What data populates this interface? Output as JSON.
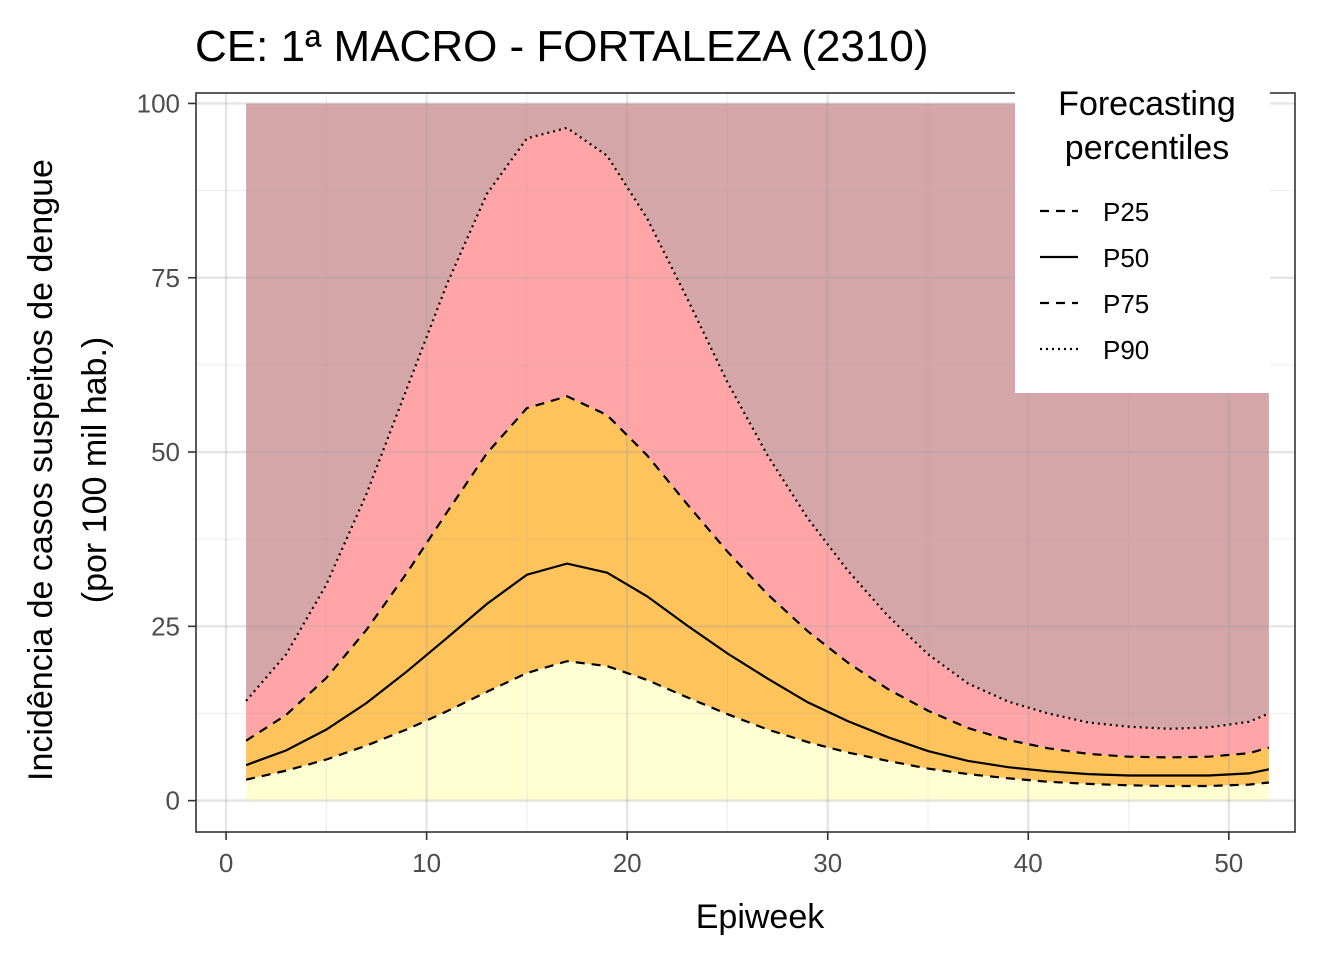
{
  "chart_data": {
    "type": "area",
    "title": "CE: 1ª MACRO - FORTALEZA (2310)",
    "xlabel": "Epiweek",
    "ylabel_line1": "Incidência de casos suspeitos de dengue",
    "ylabel_line2": "(por 100 mil hab.)",
    "xlim": [
      -1.5,
      53.3
    ],
    "ylim": [
      -4.5,
      101.5
    ],
    "x_ticks": [
      0,
      10,
      20,
      30,
      40,
      50
    ],
    "x_tick_labels": [
      "0",
      "10",
      "20",
      "30",
      "40",
      "50"
    ],
    "y_ticks": [
      0,
      25,
      50,
      75,
      100
    ],
    "y_tick_labels": [
      "0",
      "25",
      "50",
      "75",
      "100"
    ],
    "grid": true,
    "legend": {
      "title_line1": "Forecasting",
      "title_line2": "percentiles",
      "placement": "top-right",
      "entries": [
        {
          "label": "P25",
          "linetype": "dashed"
        },
        {
          "label": "P50",
          "linetype": "solid"
        },
        {
          "label": "P75",
          "linetype": "dashed"
        },
        {
          "label": "P90",
          "linetype": "dotted"
        }
      ]
    },
    "band_colors": {
      "below_p25": "#ffffd4",
      "p25_p75": "#fec35a",
      "p75_p90": "#ffa5a8",
      "above_p90": "#d5a6a8"
    },
    "band_top": 100,
    "x": [
      1,
      3,
      5,
      7,
      9,
      11,
      13,
      15,
      17,
      19,
      21,
      23,
      25,
      27,
      29,
      31,
      33,
      35,
      37,
      39,
      41,
      43,
      45,
      47,
      49,
      51,
      52
    ],
    "series": [
      {
        "name": "P25",
        "values": [
          3.0,
          4.3,
          5.9,
          7.9,
          10.2,
          12.8,
          15.6,
          18.3,
          20.0,
          19.3,
          17.3,
          14.8,
          12.4,
          10.2,
          8.4,
          6.9,
          5.7,
          4.6,
          3.8,
          3.2,
          2.7,
          2.4,
          2.2,
          2.1,
          2.1,
          2.3,
          2.6
        ]
      },
      {
        "name": "P50",
        "values": [
          5.1,
          7.2,
          10.2,
          14.0,
          18.5,
          23.3,
          28.2,
          32.4,
          34.0,
          32.7,
          29.3,
          25.1,
          21.1,
          17.5,
          14.1,
          11.4,
          9.1,
          7.1,
          5.7,
          4.8,
          4.2,
          3.8,
          3.6,
          3.6,
          3.6,
          3.9,
          4.5
        ]
      },
      {
        "name": "P75",
        "values": [
          8.6,
          12.3,
          17.6,
          24.5,
          32.6,
          41.3,
          49.8,
          56.3,
          58.0,
          55.3,
          49.5,
          42.5,
          35.7,
          29.6,
          24.3,
          19.8,
          16.0,
          12.9,
          10.4,
          8.7,
          7.5,
          6.7,
          6.3,
          6.2,
          6.3,
          6.8,
          7.6
        ]
      },
      {
        "name": "P90",
        "values": [
          14.3,
          21.0,
          31.0,
          44.0,
          59.0,
          74.0,
          87.0,
          95.0,
          96.5,
          92.5,
          83.5,
          72.0,
          60.0,
          49.5,
          40.5,
          33.0,
          26.5,
          21.0,
          16.8,
          14.2,
          12.5,
          11.2,
          10.6,
          10.3,
          10.5,
          11.3,
          12.5
        ]
      }
    ]
  }
}
